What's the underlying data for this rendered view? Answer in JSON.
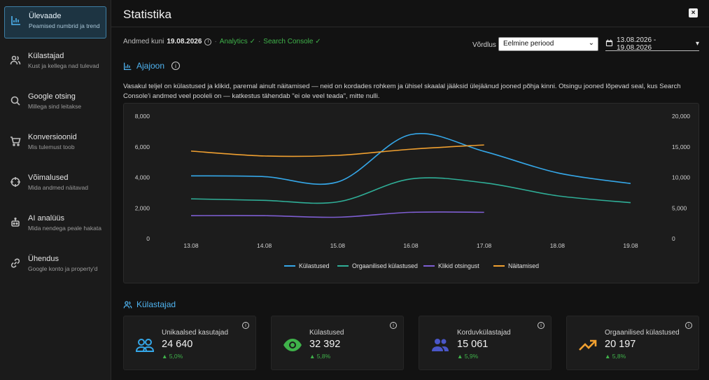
{
  "sidebar": {
    "items": [
      {
        "title": "Ülevaade",
        "sub": "Peamised numbrid ja trend",
        "icon": "bar-chart-icon"
      },
      {
        "title": "Külastajad",
        "sub": "Kust ja kellega nad tulevad",
        "icon": "users-icon"
      },
      {
        "title": "Google otsing",
        "sub": "Millega sind leitakse",
        "icon": "search-icon"
      },
      {
        "title": "Konversioonid",
        "sub": "Mis tulemust toob",
        "icon": "cart-icon"
      },
      {
        "title": "Võimalused",
        "sub": "Mida andmed näitavad",
        "icon": "crosshair-icon"
      },
      {
        "title": "AI analüüs",
        "sub": "Mida nendega peale hakata",
        "icon": "robot-icon"
      },
      {
        "title": "Ühendus",
        "sub": "Google konto ja property'd",
        "icon": "link-icon"
      }
    ]
  },
  "header": {
    "title": "Statistika",
    "close_label": "×"
  },
  "meta": {
    "data_until_label": "Andmed kuni",
    "data_until_date": "19.08.2026",
    "sep": "·",
    "source1": "Analytics ✓",
    "source2": "Search Console ✓"
  },
  "compare": {
    "label": "Võrdlus",
    "selected": "Eelmine periood",
    "date_range": "13.08.2026 - 19.08.2026",
    "date_chevron": "▾"
  },
  "timeline": {
    "heading": "Ajajoon",
    "description": "Vasakul teljel on külastused ja klikid, paremal ainult näitamised — neid on kordades rohkem ja ühisel skaalal jääksid ülejäänud jooned põhja kinni. Otsingu jooned lõpevad seal, kus Search Console'i andmed veel pooleli on — katkestus tähendab \"ei ole veel teada\", mitte nulli."
  },
  "chart_data": {
    "type": "line",
    "x": [
      "13.08",
      "14.08",
      "15.08",
      "16.08",
      "17.08",
      "18.08",
      "19.08"
    ],
    "ylim_left": [
      0,
      8000
    ],
    "ylim_right": [
      0,
      20000
    ],
    "left_ticks": [
      "0",
      "2,000",
      "4,000",
      "6,000",
      "8,000"
    ],
    "right_ticks": [
      "0",
      "5,000",
      "10,000",
      "15,000",
      "20,000"
    ],
    "grid": false,
    "legend_position": "bottom",
    "series": [
      {
        "name": "Külastused",
        "axis": "left",
        "color": "#35a7e8",
        "values": [
          4100,
          4050,
          3700,
          6800,
          5700,
          4300,
          3600
        ]
      },
      {
        "name": "Orgaanilised külastused",
        "axis": "left",
        "color": "#2fae97",
        "values": [
          2600,
          2500,
          2400,
          3900,
          3650,
          2800,
          2350
        ]
      },
      {
        "name": "Klikid otsingust",
        "axis": "left",
        "color": "#7e5ed2",
        "values": [
          1500,
          1500,
          1400,
          1720,
          1720,
          null,
          null
        ]
      },
      {
        "name": "Näitamised",
        "axis": "right",
        "color": "#f0a030",
        "values": [
          14300,
          13500,
          13600,
          14600,
          15300,
          null,
          null
        ]
      }
    ]
  },
  "visitors_section": {
    "heading": "Külastajad"
  },
  "stats": [
    {
      "label": "Unikaalsed kasutajad",
      "value": "24 640",
      "change": "▲ 5,0%",
      "icon": "users-icon",
      "color": "#35a7e8"
    },
    {
      "label": "Külastused",
      "value": "32 392",
      "change": "▲ 5,8%",
      "icon": "eye-icon",
      "color": "#3fb24a"
    },
    {
      "label": "Korduvkülastajad",
      "value": "15 061",
      "change": "▲ 5,9%",
      "icon": "people-icon",
      "color": "#4a56c8"
    },
    {
      "label": "Orgaanilised külastused",
      "value": "20 197",
      "change": "▲ 5,8%",
      "icon": "trending-up-icon",
      "color": "#f0a030"
    }
  ]
}
